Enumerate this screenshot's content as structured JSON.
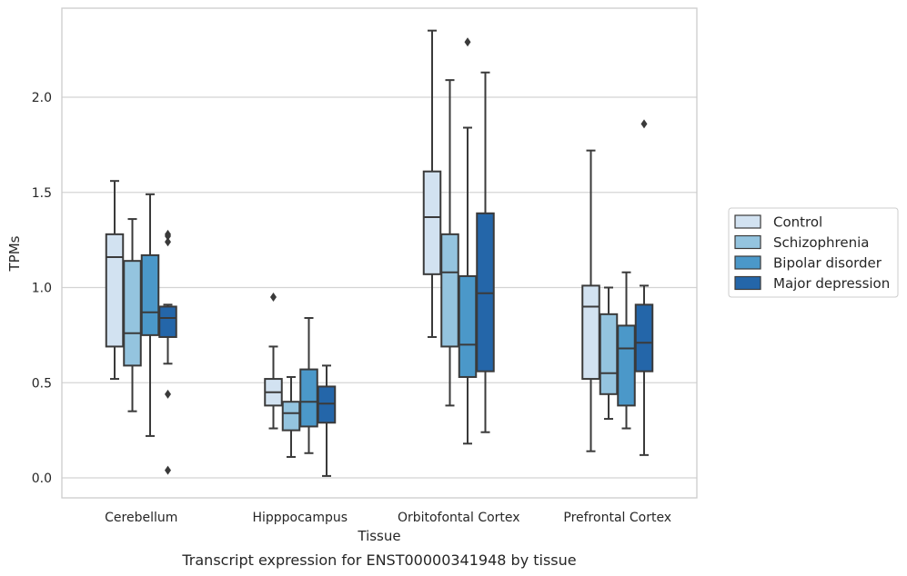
{
  "chart_data": {
    "type": "box",
    "title": "",
    "caption": "Transcript expression for ENST00000341948 by tissue",
    "xlabel": "Tissue",
    "ylabel": "TPMs",
    "ylim": [
      -0.1,
      2.48
    ],
    "yticks": [
      "0.0",
      "0.5",
      "1.0",
      "1.5",
      "2.0"
    ],
    "grid": "horizontal",
    "legend_position": "right",
    "categories": [
      "Cerebellum",
      "Hipppocampus",
      "Orbitofontal Cortex",
      "Prefrontal Cortex"
    ],
    "series": [
      {
        "name": "Control",
        "color": "#d2e2f1",
        "boxes": [
          {
            "whislo": 0.52,
            "q1": 0.69,
            "med": 1.16,
            "q3": 1.28,
            "whishi": 1.56,
            "fliers": []
          },
          {
            "whislo": 0.26,
            "q1": 0.38,
            "med": 0.45,
            "q3": 0.52,
            "whishi": 0.69,
            "fliers": [
              0.95
            ]
          },
          {
            "whislo": 0.74,
            "q1": 1.07,
            "med": 1.37,
            "q3": 1.61,
            "whishi": 2.35,
            "fliers": []
          },
          {
            "whislo": 0.14,
            "q1": 0.52,
            "med": 0.9,
            "q3": 1.01,
            "whishi": 1.72,
            "fliers": []
          }
        ]
      },
      {
        "name": "Schizophrenia",
        "color": "#94c4df",
        "boxes": [
          {
            "whislo": 0.35,
            "q1": 0.59,
            "med": 0.76,
            "q3": 1.14,
            "whishi": 1.36,
            "fliers": []
          },
          {
            "whislo": 0.11,
            "q1": 0.25,
            "med": 0.34,
            "q3": 0.4,
            "whishi": 0.53,
            "fliers": []
          },
          {
            "whislo": 0.38,
            "q1": 0.69,
            "med": 1.08,
            "q3": 1.28,
            "whishi": 2.09,
            "fliers": []
          },
          {
            "whislo": 0.31,
            "q1": 0.44,
            "med": 0.55,
            "q3": 0.86,
            "whishi": 1.0,
            "fliers": []
          }
        ]
      },
      {
        "name": "Bipolar disorder",
        "color": "#4b98c9",
        "boxes": [
          {
            "whislo": 0.22,
            "q1": 0.75,
            "med": 0.87,
            "q3": 1.17,
            "whishi": 1.49,
            "fliers": []
          },
          {
            "whislo": 0.13,
            "q1": 0.27,
            "med": 0.4,
            "q3": 0.57,
            "whishi": 0.84,
            "fliers": []
          },
          {
            "whislo": 0.18,
            "q1": 0.53,
            "med": 0.7,
            "q3": 1.06,
            "whishi": 1.84,
            "fliers": [
              2.29
            ]
          },
          {
            "whislo": 0.26,
            "q1": 0.38,
            "med": 0.68,
            "q3": 0.8,
            "whishi": 1.08,
            "fliers": []
          }
        ]
      },
      {
        "name": "Major depression",
        "color": "#2466a9",
        "boxes": [
          {
            "whislo": 0.6,
            "q1": 0.74,
            "med": 0.84,
            "q3": 0.9,
            "whishi": 0.91,
            "fliers": [
              1.28,
              1.27,
              1.24,
              0.44,
              0.04
            ]
          },
          {
            "whislo": 0.01,
            "q1": 0.29,
            "med": 0.39,
            "q3": 0.48,
            "whishi": 0.59,
            "fliers": []
          },
          {
            "whislo": 0.24,
            "q1": 0.56,
            "med": 0.97,
            "q3": 1.39,
            "whishi": 2.13,
            "fliers": []
          },
          {
            "whislo": 0.12,
            "q1": 0.56,
            "med": 0.71,
            "q3": 0.91,
            "whishi": 1.01,
            "fliers": [
              1.86
            ]
          }
        ]
      }
    ]
  }
}
